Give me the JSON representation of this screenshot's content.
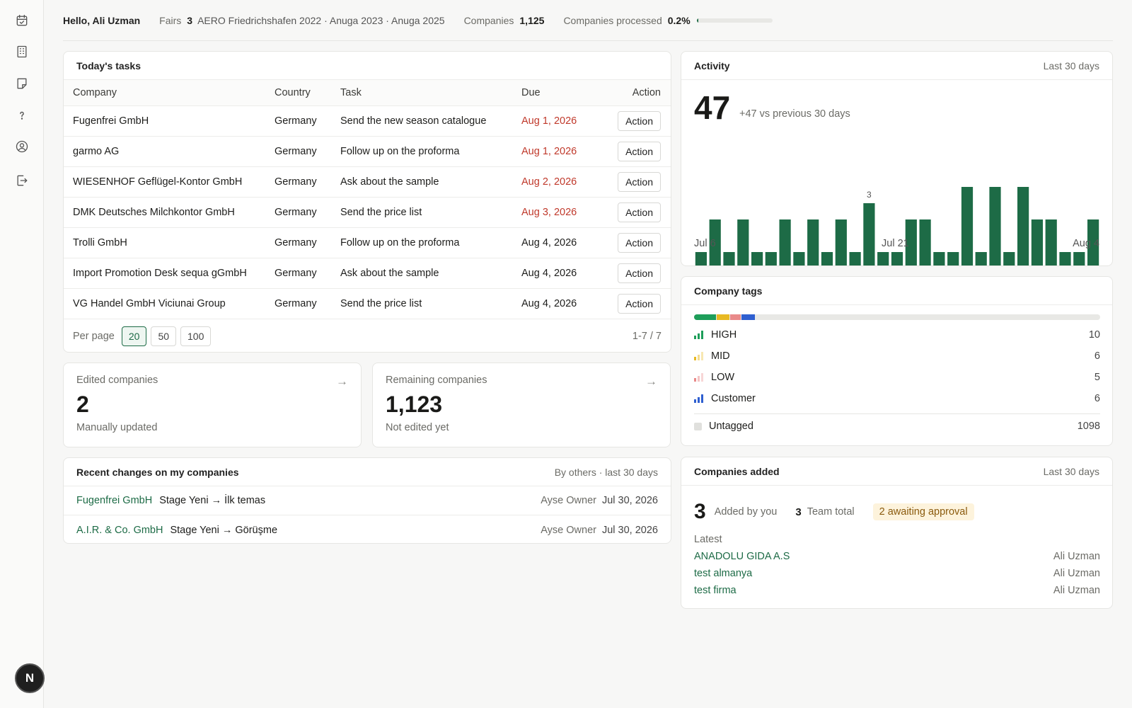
{
  "sidebar": {
    "icons": [
      "calendar-check-icon",
      "building-icon",
      "note-icon",
      "help-icon",
      "user-circle-icon",
      "logout-icon"
    ],
    "badge": "N"
  },
  "header": {
    "greeting": "Hello, Ali Uzman",
    "fairs_label": "Fairs",
    "fairs_count": "3",
    "fairs_list": "AERO Friedrichshafen 2022 · Anuga 2023 · Anuga 2025",
    "companies_label": "Companies",
    "companies_count": "1,125",
    "processed_label": "Companies processed",
    "processed_value": "0.2%",
    "processed_fraction": 0.002
  },
  "tasks": {
    "title": "Today's tasks",
    "columns": {
      "company": "Company",
      "country": "Country",
      "task": "Task",
      "due": "Due",
      "action": "Action"
    },
    "rows": [
      {
        "company": "Fugenfrei GmbH",
        "country": "Germany",
        "task": "Send the new season catalogue",
        "due": "Aug 1, 2026",
        "overdue": true,
        "action": "Action"
      },
      {
        "company": "garmo AG",
        "country": "Germany",
        "task": "Follow up on the proforma",
        "due": "Aug 1, 2026",
        "overdue": true,
        "action": "Action"
      },
      {
        "company": "WIESENHOF Geflügel-Kontor GmbH",
        "country": "Germany",
        "task": "Ask about the sample",
        "due": "Aug 2, 2026",
        "overdue": true,
        "action": "Action"
      },
      {
        "company": "DMK Deutsches Milchkontor GmbH",
        "country": "Germany",
        "task": "Send the price list",
        "due": "Aug 3, 2026",
        "overdue": true,
        "action": "Action"
      },
      {
        "company": "Trolli GmbH",
        "country": "Germany",
        "task": "Follow up on the proforma",
        "due": "Aug 4, 2026",
        "overdue": false,
        "action": "Action"
      },
      {
        "company": "Import Promotion Desk sequa gGmbH",
        "country": "Germany",
        "task": "Ask about the sample",
        "due": "Aug 4, 2026",
        "overdue": false,
        "action": "Action"
      },
      {
        "company": "VG Handel GmbH Viciunai Group",
        "country": "Germany",
        "task": "Send the price list",
        "due": "Aug 4, 2026",
        "overdue": false,
        "action": "Action"
      }
    ],
    "per_page_label": "Per page",
    "per_page_options": [
      "20",
      "50",
      "100"
    ],
    "per_page_selected": "20",
    "range": "1-7 / 7"
  },
  "edited": {
    "label": "Edited companies",
    "value": "2",
    "note": "Manually updated",
    "arrow": "→"
  },
  "remaining": {
    "label": "Remaining companies",
    "value": "1,123",
    "note": "Not edited yet",
    "arrow": "→"
  },
  "recent": {
    "title": "Recent changes on my companies",
    "subtitle": "By others · last 30 days",
    "rows": [
      {
        "company": "Fugenfrei GmbH",
        "change": "Stage Yeni → İlk temas",
        "user": "Ayse Owner",
        "date": "Jul 30, 2026"
      },
      {
        "company": "A.I.R. & Co. GmbH",
        "change": "Stage Yeni → Görüşme",
        "user": "Ayse Owner",
        "date": "Jul 30, 2026"
      }
    ]
  },
  "activity": {
    "title": "Activity",
    "period": "Last 30 days",
    "total": "47",
    "comparison": "+47 vs previous 30 days",
    "peak_label": "3",
    "x_labels": [
      "Jul 6",
      "Jul 21",
      "Aug 4"
    ],
    "bar_color": "#1d6b46"
  },
  "chart_data": {
    "type": "bar",
    "values": [
      1,
      2,
      1,
      2,
      1,
      1,
      2,
      1,
      2,
      1,
      2,
      1,
      2.5,
      1,
      1,
      2,
      2,
      1,
      1,
      3,
      1,
      3,
      1,
      3,
      2,
      2,
      1,
      1,
      2
    ],
    "annotation": "3",
    "tick_labels": [
      "Jul 6",
      "Jul 21",
      "Aug 4"
    ]
  },
  "tags": {
    "title": "Company tags",
    "items": [
      {
        "name": "HIGH",
        "count": "10",
        "color": "#1e9e5a"
      },
      {
        "name": "MID",
        "count": "6",
        "color": "#e8b923"
      },
      {
        "name": "LOW",
        "count": "5",
        "color": "#e98a8a"
      },
      {
        "name": "Customer",
        "count": "6",
        "color": "#2f5fd0"
      }
    ],
    "untagged_label": "Untagged",
    "untagged_count": "1098",
    "total": 1125
  },
  "added": {
    "title": "Companies added",
    "period": "Last 30 days",
    "by_you_count": "3",
    "by_you_label": "Added by you",
    "team_count": "3",
    "team_label": "Team total",
    "awaiting": "2 awaiting approval",
    "latest_label": "Latest",
    "latest": [
      {
        "name": "ANADOLU GIDA A.S",
        "by": "Ali Uzman"
      },
      {
        "name": "test almanya",
        "by": "Ali Uzman"
      },
      {
        "name": "test firma",
        "by": "Ali Uzman"
      }
    ]
  }
}
